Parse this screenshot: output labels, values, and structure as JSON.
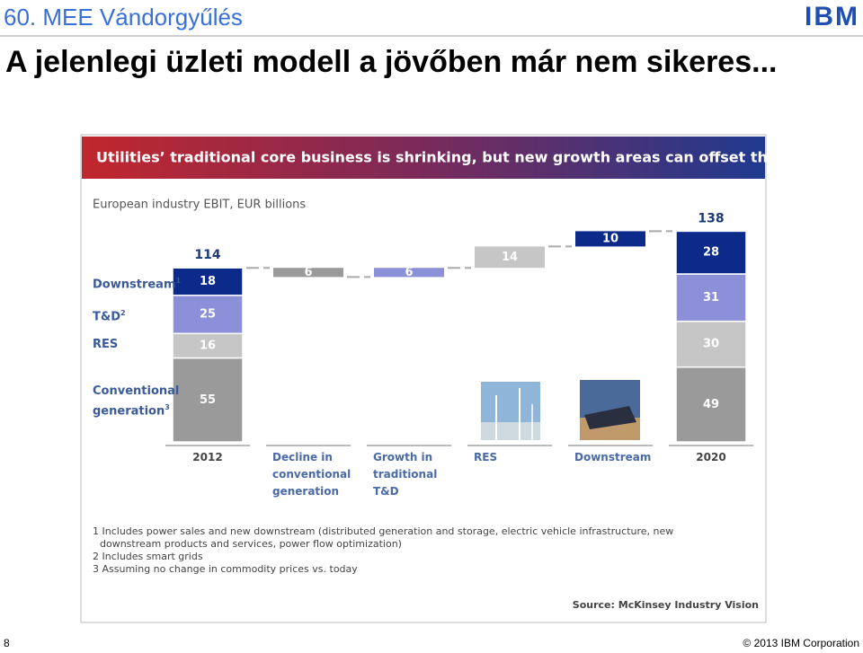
{
  "slide": {
    "event": "60. MEE Vándorgyűlés",
    "title": "A jelenlegi üzleti modell a jövőben már nem sikeres...",
    "logo": "IBM",
    "page": "8",
    "copyright": "© 2013 IBM Corporation"
  },
  "chart_data": {
    "type": "waterfall",
    "title": "Utilities’ traditional core business is shrinking, but new growth areas can offset the decline",
    "subtitle": "European industry EBIT, EUR billions",
    "categories": [
      "2012",
      "Decline in conventional generation",
      "Growth in traditional T&D",
      "RES",
      "Downstream",
      "2020"
    ],
    "series": [
      {
        "name": "Conventional generation",
        "marker": "3",
        "color": "#9a9a9a",
        "values": [
          55,
          null,
          null,
          null,
          null,
          49
        ]
      },
      {
        "name": "RES",
        "color": "#c6c6c6",
        "values": [
          16,
          null,
          null,
          null,
          null,
          30
        ]
      },
      {
        "name": "T&D",
        "marker": "2",
        "color": "#8b90d8",
        "values": [
          25,
          null,
          null,
          null,
          null,
          31
        ]
      },
      {
        "name": "Downstream",
        "marker": "1",
        "color": "#0b2a8a",
        "values": [
          18,
          null,
          null,
          null,
          null,
          28
        ]
      }
    ],
    "totals": [
      114,
      null,
      null,
      null,
      null,
      138
    ],
    "changes": [
      null,
      -6,
      6,
      14,
      10,
      null
    ],
    "value_labels": [
      null,
      "6",
      "6",
      "14",
      "10",
      null
    ],
    "change_colors": [
      null,
      "#9a9a9a",
      "#8b90d8",
      "#c6c6c6",
      "#0b2a8a",
      null
    ],
    "footnotes": [
      "1 Includes power sales and new downstream (distributed generation and storage, electric vehicle infrastructure, new downstream products and services, power flow optimization)",
      "2 Includes smart grids",
      "3 Assuming no change in commodity prices vs. today"
    ],
    "source": "Source: McKinsey Industry Vision"
  }
}
